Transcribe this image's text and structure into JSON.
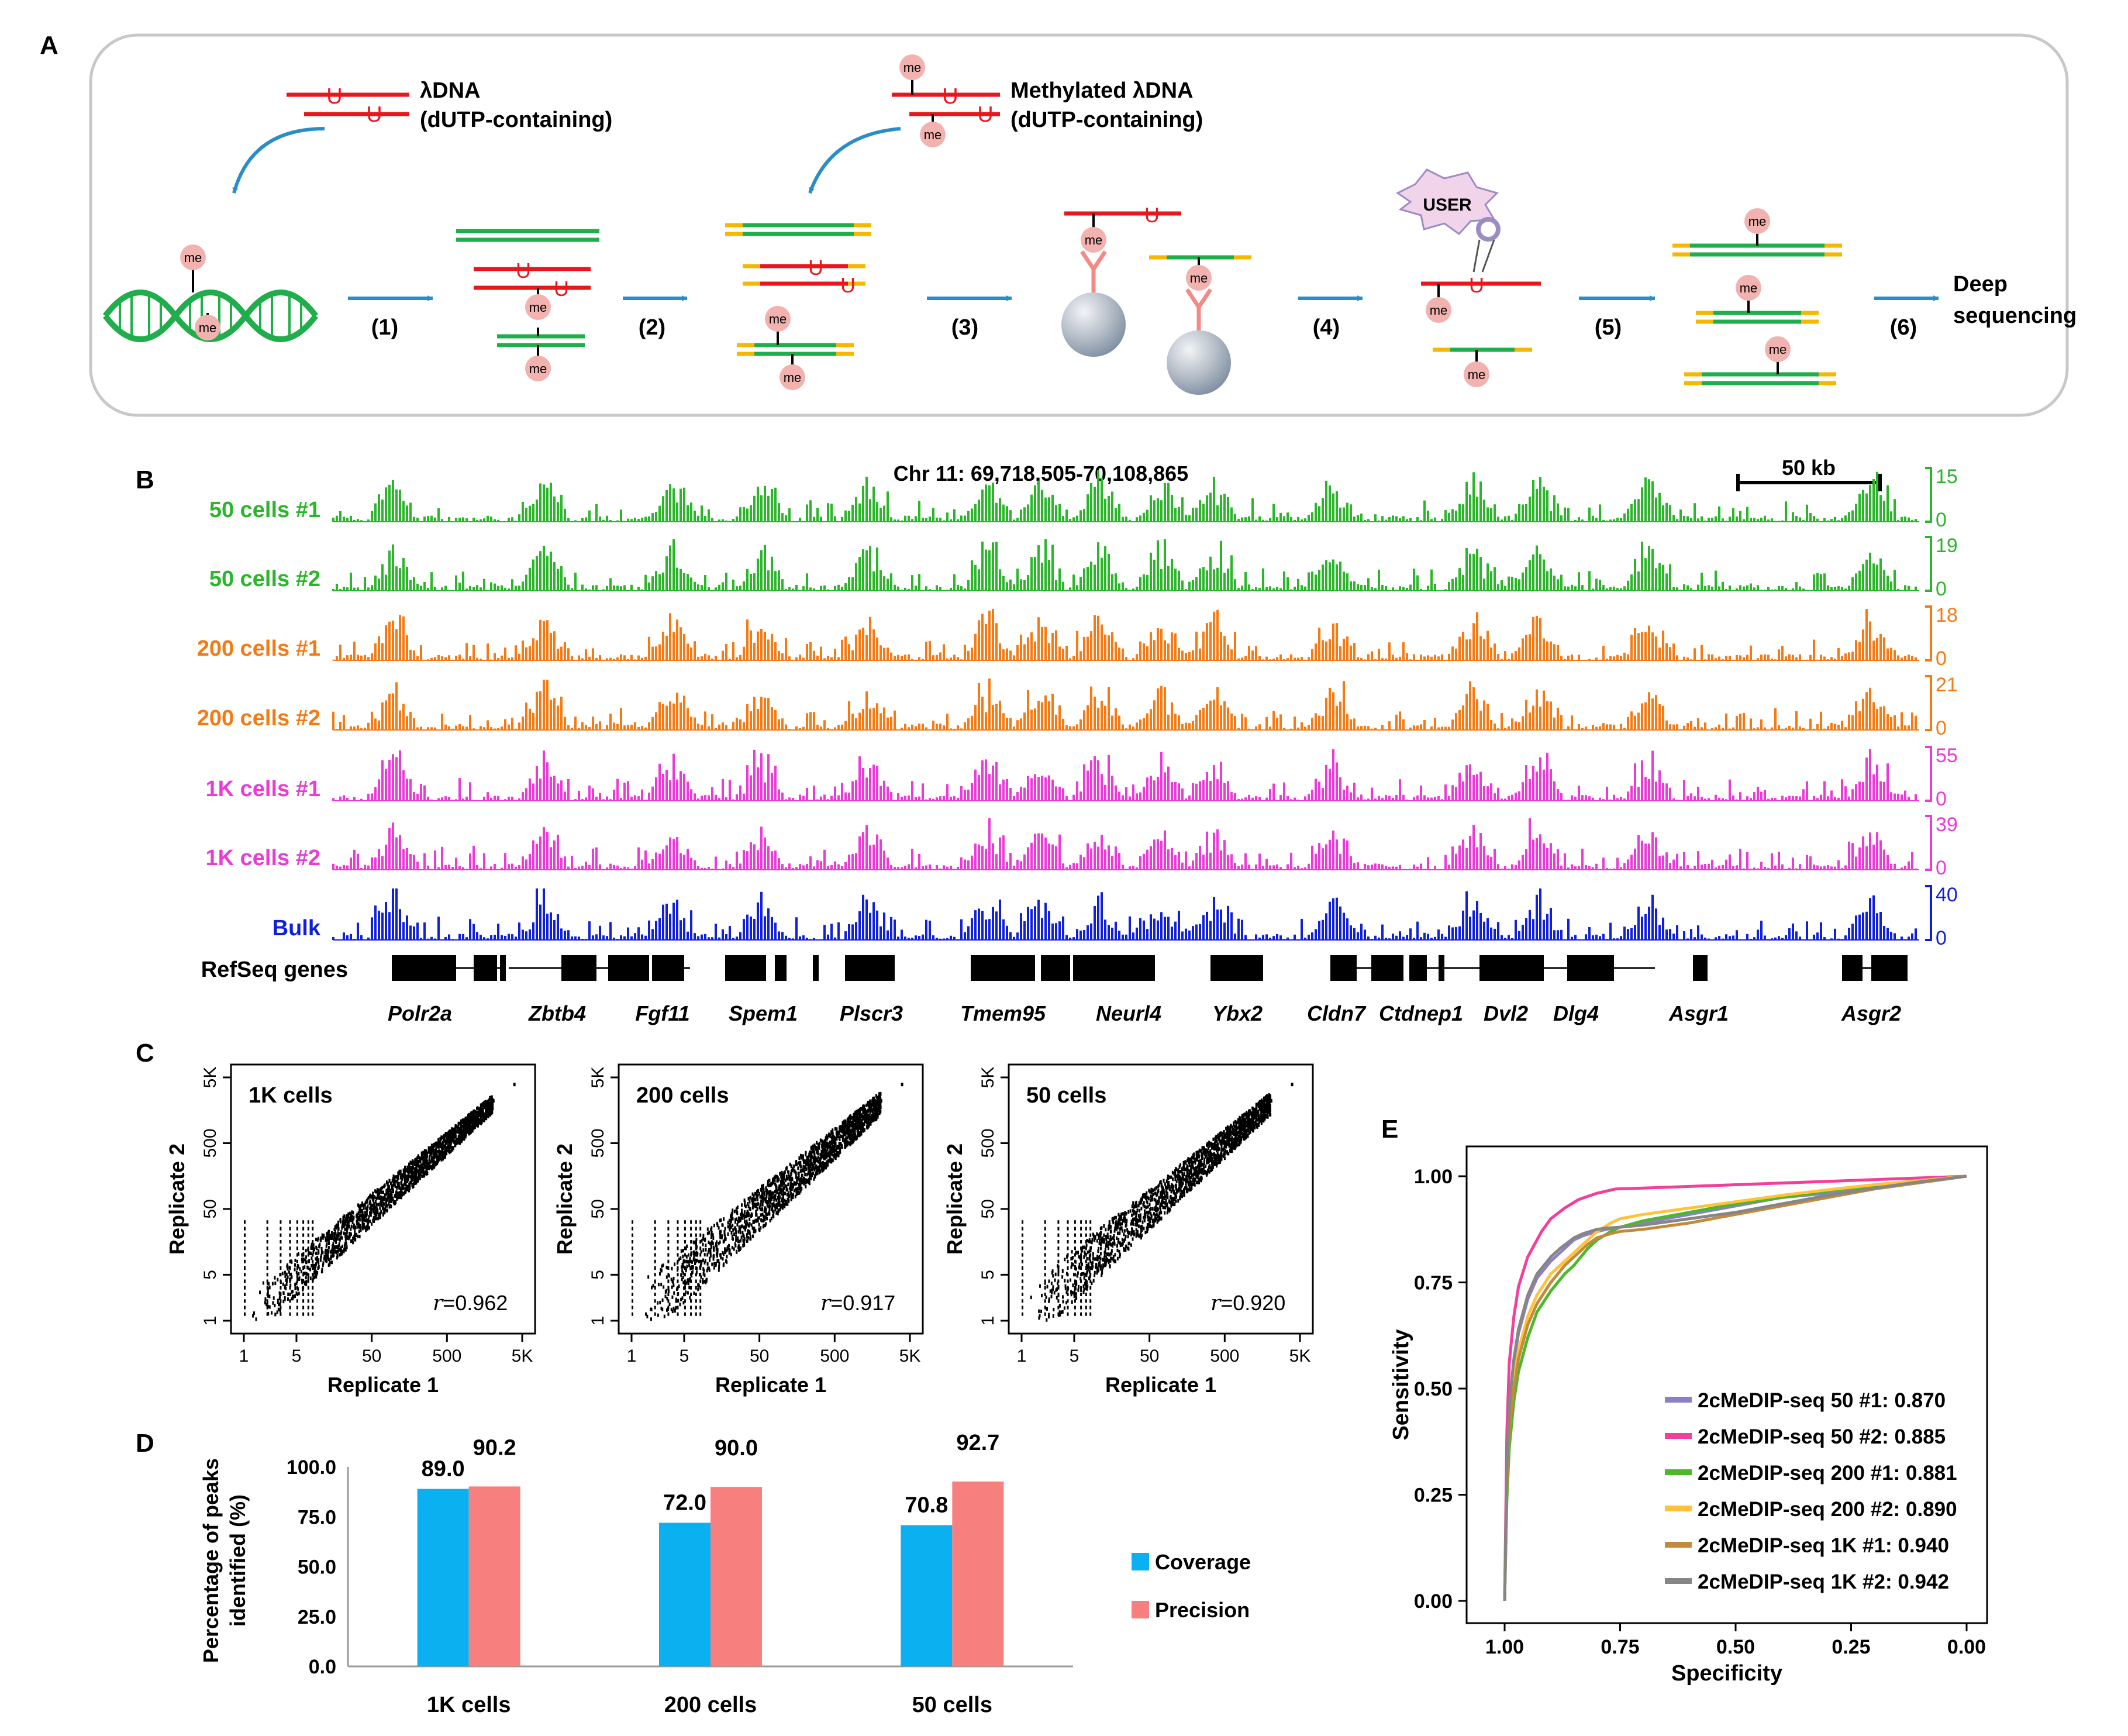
{
  "panel_labels": {
    "a": "A",
    "b": "B",
    "c": "C",
    "d": "D",
    "e": "E"
  },
  "panel_a": {
    "lambda_title": "λDNA",
    "lambda_sub": "(dUTP-containing)",
    "meth_title": "Methylated λDNA",
    "meth_sub": "(dUTP-containing)",
    "me": "me",
    "u": "U",
    "user": "USER",
    "steps": [
      "(1)",
      "(2)",
      "(3)",
      "(4)",
      "(5)",
      "(6)"
    ],
    "final_1": "Deep",
    "final_2": "sequencing",
    "colors": {
      "red": "#e8161d",
      "green": "#1fae4b",
      "yellow": "#f5b700",
      "blue_arrow": "#2b8dc8",
      "me_fill": "#f2b3b0"
    }
  },
  "panel_b": {
    "coords": "Chr 11: 69,718,505-70,108,865",
    "scale": "50 kb",
    "refseq_label": "RefSeq genes",
    "tracks": [
      {
        "label": "50 cells #1",
        "max": "15",
        "min": "0",
        "color": "#2bb52b"
      },
      {
        "label": "50 cells #2",
        "max": "19",
        "min": "0",
        "color": "#2bb52b"
      },
      {
        "label": "200 cells #1",
        "max": "18",
        "min": "0",
        "color": "#f57a13"
      },
      {
        "label": "200 cells #2",
        "max": "21",
        "min": "0",
        "color": "#f57a13"
      },
      {
        "label": "1K cells #1",
        "max": "55",
        "min": "0",
        "color": "#ea3bd7"
      },
      {
        "label": "1K cells #2",
        "max": "39",
        "min": "0",
        "color": "#ea3bd7"
      },
      {
        "label": "Bulk",
        "max": "40",
        "min": "0",
        "color": "#1020d8"
      }
    ],
    "genes": [
      "Polr2a",
      "Zbtb4",
      "Fgf11",
      "Spem1",
      "Plscr3",
      "Tmem95",
      "Neurl4",
      "Ybx2",
      "Cldn7",
      "Ctdnep1",
      "Dvl2",
      "Dlg4",
      "Asgr1",
      "Asgr2"
    ]
  },
  "panel_c": {
    "xlabel": "Replicate 1",
    "ylabel": "Replicate 2",
    "ticks": [
      "1",
      "5",
      "50",
      "500",
      "5K"
    ],
    "plots": [
      {
        "title": "1K cells",
        "r": "=0.962"
      },
      {
        "title": "200 cells",
        "r": "=0.917"
      },
      {
        "title": "50 cells",
        "r": "=0.920"
      }
    ],
    "r_symbol": "r"
  },
  "chart_data": [
    {
      "type": "bar",
      "title": "",
      "ylabel": "Percentage of peaks identified (%)",
      "ylabel_lines": [
        "Percentage of peaks",
        "identified (%)"
      ],
      "categories": [
        "1K cells",
        "200 cells",
        "50 cells"
      ],
      "series": [
        {
          "name": "Coverage",
          "color": "#0ab0ef",
          "values": [
            89.0,
            72.0,
            70.8
          ]
        },
        {
          "name": "Precision",
          "color": "#f77f7d",
          "values": [
            90.2,
            90.0,
            92.7
          ]
        }
      ],
      "value_labels": [
        [
          "89.0",
          "72.0",
          "70.8"
        ],
        [
          "90.2",
          "90.0",
          "92.7"
        ]
      ],
      "ylim": [
        0,
        100
      ],
      "yticks": [
        0,
        25,
        50,
        75,
        100
      ],
      "ytick_labels": [
        "0.0",
        "25.0",
        "50.0",
        "75.0",
        "100.0"
      ]
    },
    {
      "type": "line",
      "title": "",
      "xlabel": "Specificity",
      "ylabel": "Sensitivity",
      "xlim": [
        1.0,
        0.0
      ],
      "ylim": [
        0,
        1
      ],
      "xticks": [
        1.0,
        0.75,
        0.5,
        0.25,
        0.0
      ],
      "xtick_labels": [
        "1.00",
        "0.75",
        "0.50",
        "0.25",
        "0.00"
      ],
      "yticks": [
        0,
        0.25,
        0.5,
        0.75,
        1.0
      ],
      "ytick_labels": [
        "0.00",
        "0.25",
        "0.50",
        "0.75",
        "1.00"
      ],
      "series": [
        {
          "name": "2cMeDIP-seq 50 #1: 0.870",
          "color": "#8d7fc4",
          "x": [
            1.0,
            0.995,
            0.99,
            0.98,
            0.97,
            0.95,
            0.93,
            0.9,
            0.87,
            0.85,
            0.83,
            0.8,
            0.78,
            0.75,
            0.7,
            0.6,
            0.5,
            0.4,
            0.3,
            0.2,
            0.1,
            0.0
          ],
          "y": [
            0.0,
            0.3,
            0.45,
            0.56,
            0.63,
            0.71,
            0.76,
            0.8,
            0.83,
            0.85,
            0.86,
            0.87,
            0.875,
            0.88,
            0.89,
            0.91,
            0.93,
            0.95,
            0.96,
            0.975,
            0.99,
            1.0
          ]
        },
        {
          "name": "2cMeDIP-seq 50 #2: 0.885",
          "color": "#f43f9a",
          "x": [
            1.0,
            0.995,
            0.99,
            0.98,
            0.97,
            0.95,
            0.92,
            0.9,
            0.87,
            0.84,
            0.8,
            0.76,
            0.7,
            0.6,
            0.5,
            0.4,
            0.3,
            0.2,
            0.1,
            0.0
          ],
          "y": [
            0.0,
            0.4,
            0.56,
            0.67,
            0.74,
            0.81,
            0.87,
            0.9,
            0.925,
            0.945,
            0.96,
            0.97,
            0.972,
            0.976,
            0.98,
            0.984,
            0.988,
            0.992,
            0.996,
            1.0
          ]
        },
        {
          "name": "2cMeDIP-seq 200 #1: 0.881",
          "color": "#4cb82b",
          "x": [
            1.0,
            0.995,
            0.99,
            0.98,
            0.97,
            0.95,
            0.93,
            0.9,
            0.87,
            0.85,
            0.82,
            0.8,
            0.77,
            0.75,
            0.7,
            0.6,
            0.5,
            0.4,
            0.3,
            0.2,
            0.1,
            0.0
          ],
          "y": [
            0.0,
            0.24,
            0.36,
            0.47,
            0.54,
            0.62,
            0.68,
            0.73,
            0.77,
            0.79,
            0.83,
            0.85,
            0.87,
            0.88,
            0.895,
            0.915,
            0.935,
            0.95,
            0.965,
            0.978,
            0.99,
            1.0
          ]
        },
        {
          "name": "2cMeDIP-seq 200 #2: 0.890",
          "color": "#ffc23a",
          "x": [
            1.0,
            0.995,
            0.99,
            0.98,
            0.97,
            0.95,
            0.93,
            0.9,
            0.87,
            0.85,
            0.82,
            0.8,
            0.77,
            0.75,
            0.7,
            0.6,
            0.5,
            0.4,
            0.3,
            0.2,
            0.1,
            0.0
          ],
          "y": [
            0.0,
            0.28,
            0.42,
            0.52,
            0.59,
            0.67,
            0.72,
            0.77,
            0.8,
            0.82,
            0.85,
            0.87,
            0.89,
            0.9,
            0.91,
            0.925,
            0.94,
            0.955,
            0.968,
            0.98,
            0.99,
            1.0
          ]
        },
        {
          "name": "2cMeDIP-seq 1K #1: 0.940",
          "color": "#c28a3b",
          "x": [
            1.0,
            0.995,
            0.99,
            0.98,
            0.97,
            0.95,
            0.93,
            0.9,
            0.87,
            0.85,
            0.82,
            0.8,
            0.77,
            0.75,
            0.7,
            0.6,
            0.5,
            0.4,
            0.3,
            0.2,
            0.1,
            0.0
          ],
          "y": [
            0.0,
            0.27,
            0.4,
            0.5,
            0.57,
            0.65,
            0.7,
            0.75,
            0.79,
            0.81,
            0.84,
            0.855,
            0.865,
            0.87,
            0.875,
            0.89,
            0.91,
            0.93,
            0.95,
            0.97,
            0.985,
            1.0
          ]
        },
        {
          "name": "2cMeDIP-seq 1K #2: 0.942",
          "color": "#868686",
          "x": [
            1.0,
            0.995,
            0.99,
            0.98,
            0.97,
            0.95,
            0.93,
            0.9,
            0.88,
            0.85,
            0.83,
            0.8,
            0.78,
            0.75,
            0.7,
            0.6,
            0.5,
            0.4,
            0.3,
            0.2,
            0.1,
            0.0
          ],
          "y": [
            0.0,
            0.32,
            0.46,
            0.57,
            0.64,
            0.72,
            0.77,
            0.81,
            0.83,
            0.855,
            0.865,
            0.875,
            0.878,
            0.88,
            0.885,
            0.9,
            0.915,
            0.935,
            0.955,
            0.972,
            0.987,
            1.0
          ]
        }
      ]
    }
  ]
}
